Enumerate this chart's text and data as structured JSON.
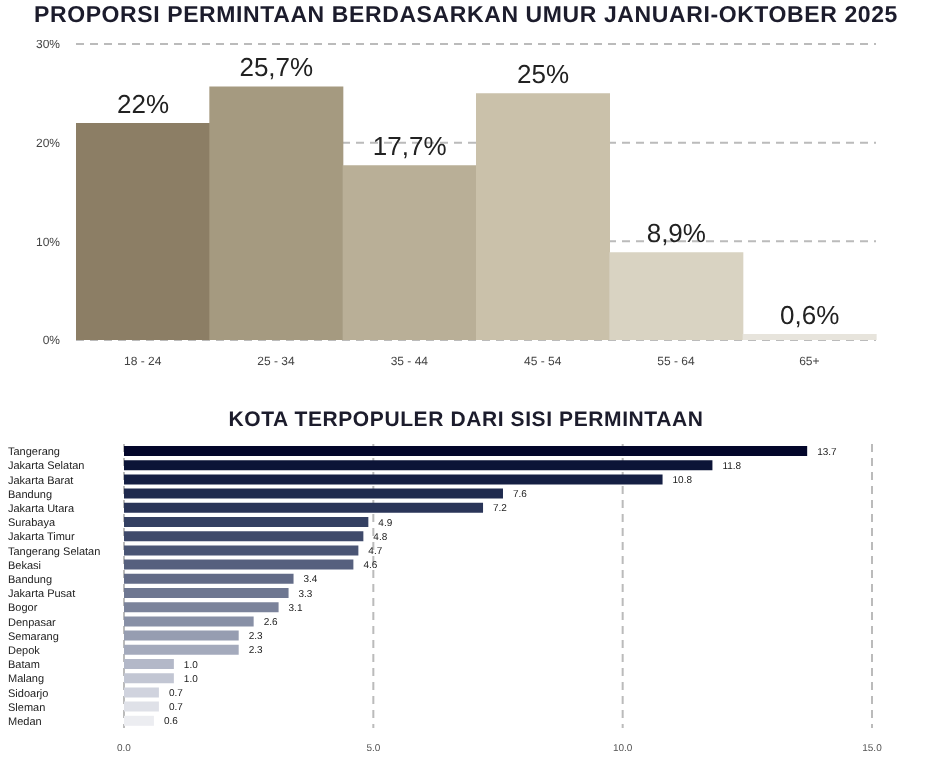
{
  "chart_data": [
    {
      "type": "bar",
      "title": "PROPORSI PERMINTAAN BERDASARKAN UMUR JANUARI-OKTOBER 2025",
      "categories": [
        "18 - 24",
        "25 - 34",
        "35 - 44",
        "45 - 54",
        "55 - 64",
        "65+"
      ],
      "values": [
        22,
        25.7,
        17.7,
        25,
        8.9,
        0.6
      ],
      "value_labels": [
        "22%",
        "25,7%",
        "17,7%",
        "25%",
        "8,9%",
        "0,6%"
      ],
      "colors": [
        "#8c7e65",
        "#a59a80",
        "#b9af97",
        "#cac1aa",
        "#d9d3c2",
        "#e7e4dc"
      ],
      "ylim": [
        0,
        30
      ],
      "yticks": [
        {
          "value": 0,
          "label": "0%"
        },
        {
          "value": 10,
          "label": "10%"
        },
        {
          "value": 20,
          "label": "20%"
        },
        {
          "value": 30,
          "label": "30%"
        }
      ],
      "grid": "y"
    },
    {
      "type": "bar",
      "orientation": "horizontal",
      "title": "KOTA TERPOPULER DARI SISI PERMINTAAN",
      "categories": [
        "Tangerang",
        "Jakarta Selatan",
        "Jakarta Barat",
        "Bandung",
        "Jakarta Utara",
        "Surabaya",
        "Jakarta Timur",
        "Tangerang Selatan",
        "Bekasi",
        "Bandung",
        "Jakarta Pusat",
        "Bogor",
        "Denpasar",
        "Semarang",
        "Depok",
        "Batam",
        "Malang",
        "Sidoarjo",
        "Sleman",
        "Medan"
      ],
      "values": [
        13.7,
        11.8,
        10.8,
        7.6,
        7.2,
        4.9,
        4.8,
        4.7,
        4.6,
        3.4,
        3.3,
        3.1,
        2.6,
        2.3,
        2.3,
        1.0,
        1.0,
        0.7,
        0.7,
        0.6
      ],
      "value_labels": [
        "13.7",
        "11.8",
        "10.8",
        "7.6",
        "7.2",
        "4.9",
        "4.8",
        "4.7",
        "4.6",
        "3.4",
        "3.3",
        "3.1",
        "2.6",
        "2.3",
        "2.3",
        "1.0",
        "1.0",
        "0.7",
        "0.7",
        "0.6"
      ],
      "colors": [
        "#03062a",
        "#0c1437",
        "#151f43",
        "#1f2a4e",
        "#2a3558",
        "#344062",
        "#3f4a6b",
        "#4a5574",
        "#56607e",
        "#626b87",
        "#6e7791",
        "#7b839b",
        "#8890a6",
        "#969db1",
        "#a4aabc",
        "#b3b8c8",
        "#c2c6d3",
        "#d0d3de",
        "#dfe1e8",
        "#ecedf1"
      ],
      "xlim": [
        0,
        15
      ],
      "xticks": [
        {
          "value": 0,
          "label": "0.0"
        },
        {
          "value": 5,
          "label": "5.0"
        },
        {
          "value": 10,
          "label": "10.0"
        },
        {
          "value": 15,
          "label": "15.0"
        }
      ],
      "grid": "x"
    }
  ]
}
